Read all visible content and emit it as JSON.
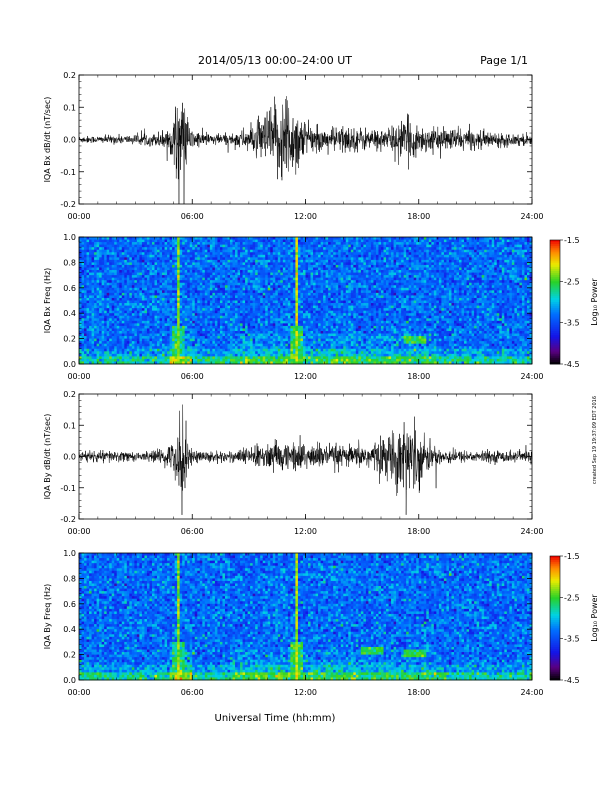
{
  "header": {
    "title": "2014/05/13  00:00–24:00 UT",
    "page": "Page 1/1"
  },
  "footer": {
    "xlabel": "Universal Time (hh:mm)",
    "stamp": "created Sep 19 19:37:09 EDT 2016"
  },
  "colorbar": {
    "label": "Log₁₀ Power",
    "ticks": [
      "-1.5",
      "-2.5",
      "-3.5",
      "-4.5"
    ],
    "range": [
      -4.5,
      -1.5
    ]
  },
  "chart_data": [
    {
      "type": "line",
      "ylabel": "IQA Bx dB/dt (nT/sec)",
      "ylim": [
        -0.2,
        0.2
      ],
      "yticks": [
        "0.2",
        "0.1",
        "0.0",
        "-0.1",
        "-0.2"
      ],
      "xlim": [
        "00:00",
        "24:00"
      ],
      "xticks": [
        "00:00",
        "06:00",
        "12:00",
        "18:00",
        "24:00"
      ],
      "envelope": {
        "x_hours": [
          0,
          1,
          2,
          3,
          3.5,
          4,
          4.5,
          5,
          5.2,
          5.4,
          5.6,
          5.8,
          6,
          6.5,
          7,
          7.5,
          8,
          8.5,
          9,
          9.5,
          10,
          10.5,
          11,
          11.3,
          11.6,
          12,
          12.5,
          13,
          13.5,
          14,
          14.5,
          15,
          15.5,
          16,
          16.5,
          17,
          17.5,
          18,
          18.5,
          19,
          19.5,
          20,
          21,
          22,
          23,
          24
        ],
        "amplitude": [
          0.012,
          0.012,
          0.015,
          0.015,
          0.02,
          0.02,
          0.035,
          0.06,
          0.15,
          0.16,
          0.12,
          0.06,
          0.03,
          0.025,
          0.02,
          0.02,
          0.02,
          0.03,
          0.04,
          0.06,
          0.1,
          0.13,
          0.18,
          0.12,
          0.11,
          0.06,
          0.04,
          0.035,
          0.04,
          0.05,
          0.04,
          0.04,
          0.035,
          0.035,
          0.04,
          0.06,
          0.07,
          0.05,
          0.04,
          0.035,
          0.035,
          0.04,
          0.03,
          0.025,
          0.02,
          0.02
        ]
      }
    },
    {
      "type": "heatmap",
      "ylabel": "IQA Bx Freq (Hz)",
      "ylim": [
        0.0,
        1.0
      ],
      "yticks": [
        "1.0",
        "0.8",
        "0.6",
        "0.4",
        "0.2",
        "0.0"
      ],
      "xlim": [
        "00:00",
        "24:00"
      ],
      "xticks": [
        "00:00",
        "06:00",
        "12:00",
        "18:00",
        "24:00"
      ],
      "z_units": "Log10 Power",
      "zlim": [
        -4.5,
        -1.5
      ],
      "features": [
        {
          "time_h": 5.3,
          "f_lo": 0.0,
          "f_hi": 1.0,
          "z": -2.3
        },
        {
          "time_h": 11.5,
          "f_lo": 0.0,
          "f_hi": 1.0,
          "z": -2.2
        },
        {
          "time_h": 17.8,
          "f_lo": 0.17,
          "f_hi": 0.22,
          "z": -2.6
        }
      ]
    },
    {
      "type": "line",
      "ylabel": "IQA By dB/dt (nT/sec)",
      "ylim": [
        -0.2,
        0.2
      ],
      "yticks": [
        "0.2",
        "0.1",
        "0.0",
        "-0.1",
        "-0.2"
      ],
      "xlim": [
        "00:00",
        "24:00"
      ],
      "xticks": [
        "00:00",
        "06:00",
        "12:00",
        "18:00",
        "24:00"
      ],
      "envelope": {
        "x_hours": [
          0,
          1,
          2,
          3,
          3.5,
          4,
          4.5,
          5,
          5.2,
          5.4,
          5.6,
          5.8,
          6,
          6.5,
          7,
          7.5,
          8,
          8.5,
          9,
          9.5,
          10,
          10.5,
          11,
          11.5,
          12,
          12.5,
          13,
          13.5,
          14,
          14.5,
          15,
          15.5,
          16,
          16.5,
          17,
          17.5,
          18,
          18.5,
          19,
          19.5,
          20,
          21,
          22,
          23,
          24
        ],
        "amplitude": [
          0.02,
          0.02,
          0.02,
          0.015,
          0.015,
          0.02,
          0.03,
          0.05,
          0.1,
          0.2,
          0.12,
          0.05,
          0.025,
          0.02,
          0.02,
          0.02,
          0.02,
          0.025,
          0.03,
          0.04,
          0.045,
          0.05,
          0.05,
          0.05,
          0.05,
          0.045,
          0.04,
          0.04,
          0.035,
          0.035,
          0.04,
          0.05,
          0.06,
          0.08,
          0.12,
          0.13,
          0.1,
          0.05,
          0.03,
          0.03,
          0.02,
          0.02,
          0.02,
          0.02,
          0.02
        ]
      }
    },
    {
      "type": "heatmap",
      "ylabel": "IQA By Freq (Hz)",
      "ylim": [
        0.0,
        1.0
      ],
      "yticks": [
        "1.0",
        "0.8",
        "0.6",
        "0.4",
        "0.2",
        "0.0"
      ],
      "xlim": [
        "00:00",
        "24:00"
      ],
      "xticks": [
        "00:00",
        "06:00",
        "12:00",
        "18:00",
        "24:00"
      ],
      "z_units": "Log10 Power",
      "zlim": [
        -4.5,
        -1.5
      ],
      "features": [
        {
          "time_h": 5.3,
          "f_lo": 0.0,
          "f_hi": 1.0,
          "z": -2.3
        },
        {
          "time_h": 11.5,
          "f_lo": 0.0,
          "f_hi": 1.0,
          "z": -2.2
        },
        {
          "time_h": 15.5,
          "f_lo": 0.2,
          "f_hi": 0.26,
          "z": -2.6
        },
        {
          "time_h": 17.8,
          "f_lo": 0.18,
          "f_hi": 0.24,
          "z": -2.6
        }
      ]
    }
  ]
}
